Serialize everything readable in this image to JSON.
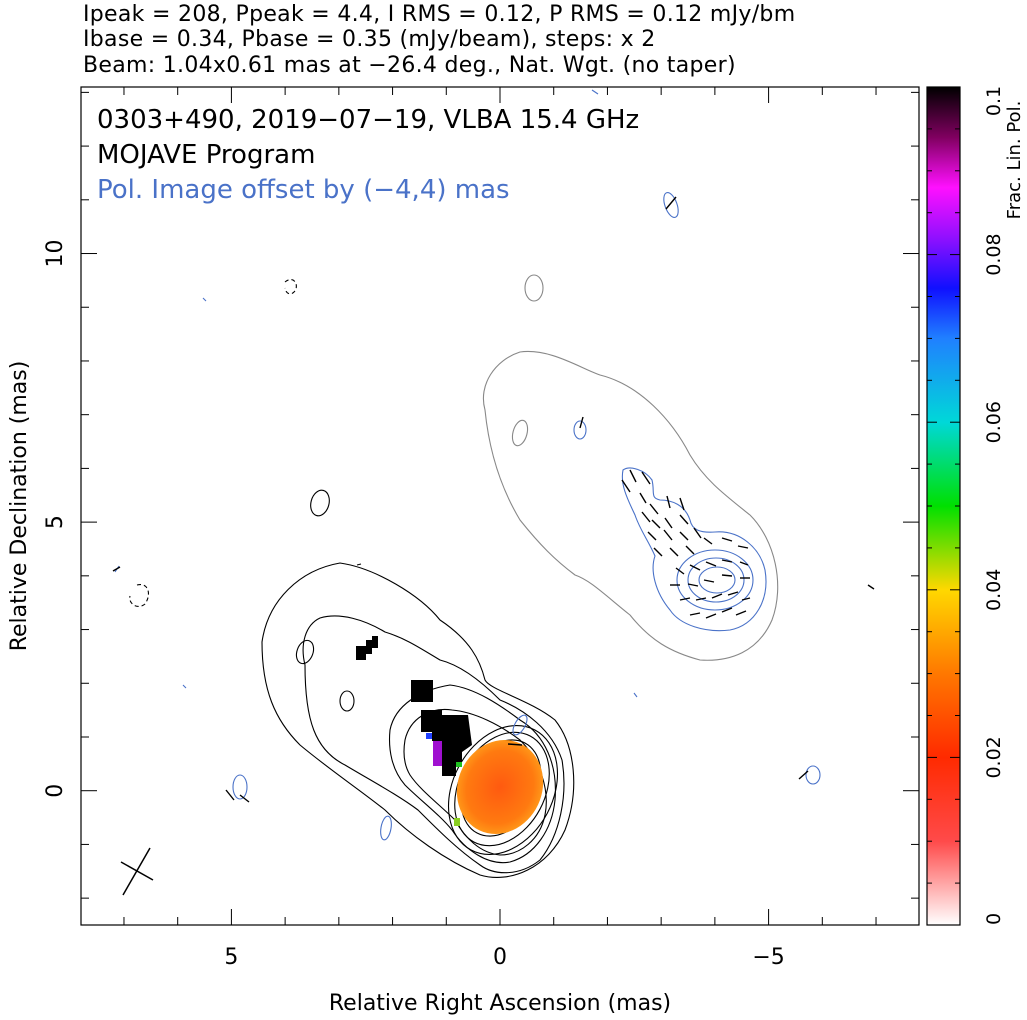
{
  "header": {
    "line1": "Ipeak = 208, Ppeak = 4.4, I RMS = 0.12, P RMS = 0.12 mJy/bm",
    "line2": "Ibase = 0.34, Pbase = 0.35 (mJy/beam), steps: x 2",
    "line3": "Beam: 1.04x0.61 mas at −26.4 deg., Nat. Wgt. (no taper)"
  },
  "annotations": {
    "source_line": "0303+490, 2019−07−19, VLBA 15.4 GHz",
    "program_line": "MOJAVE Program",
    "pol_offset_line": "Pol. Image offset by (−4,4) mas"
  },
  "colors": {
    "stokes_i_contour": "#000000",
    "pol_offset_i_contour": "#888888",
    "pol_contour": "#4a72c8",
    "pol_offset_text": "#4a72c8",
    "evpa_tick": "#000000"
  },
  "chart_data": {
    "type": "heatmap",
    "xlabel": "Relative Right Ascension (mas)",
    "ylabel": "Relative Declination (mas)",
    "x_ticks": [
      "5",
      "0",
      "−5"
    ],
    "y_ticks": [
      "0",
      "5",
      "10"
    ],
    "x_tick_values": [
      5,
      0,
      -5
    ],
    "y_tick_values": [
      0,
      5,
      10
    ],
    "xlim": [
      7.8,
      -7.8
    ],
    "ylim": [
      -2.5,
      13.1
    ],
    "colorbar": {
      "label": "Frac. Lin. Pol.",
      "range": [
        0,
        0.1
      ],
      "ticks": [
        "0",
        "0.02",
        "0.04",
        "0.06",
        "0.08",
        "0.1"
      ],
      "tick_values": [
        0,
        0.02,
        0.04,
        0.06,
        0.08,
        0.1
      ]
    },
    "beam": {
      "major_mas": 1.04,
      "minor_mas": 0.61,
      "pa_deg": -26.4,
      "center": [
        6.7,
        -1.5
      ]
    },
    "polarization_offset_mas": [
      -4,
      4
    ],
    "stokes_i_peak_mJy": 208,
    "pol_peak_mJy": 4.4,
    "core_position": [
      0,
      0
    ],
    "core_frac_pol_approx": 0.025
  }
}
